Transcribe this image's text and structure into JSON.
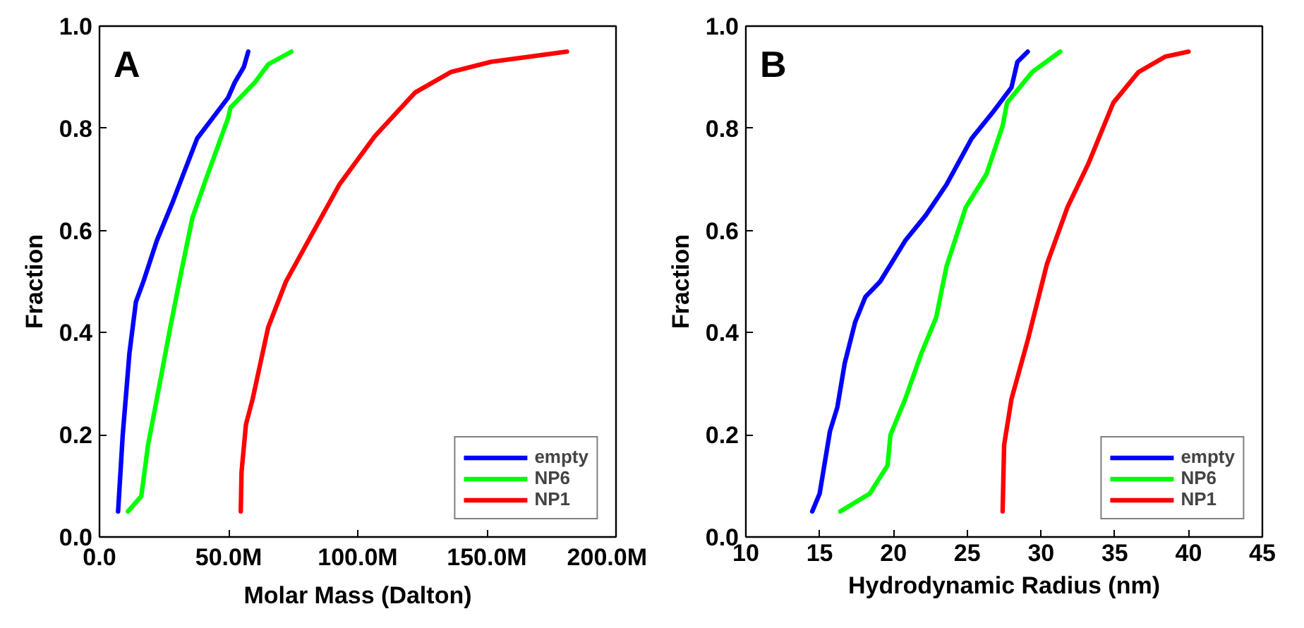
{
  "chart_data": [
    {
      "type": "line",
      "annotations": [
        "A"
      ],
      "xlabel": "Molar Mass (Dalton)",
      "ylabel": "Fraction",
      "xlim": [
        0,
        200
      ],
      "ylim": [
        0,
        1
      ],
      "xticks": [
        {
          "value": 0,
          "label": "0.0"
        },
        {
          "value": 50,
          "label": "50.0M"
        },
        {
          "value": 100,
          "label": "100.0M"
        },
        {
          "value": 150,
          "label": "150.0M"
        },
        {
          "value": 200,
          "label": "200.0M"
        }
      ],
      "yticks": [
        {
          "value": 0,
          "label": "0.0"
        },
        {
          "value": 0.2,
          "label": "0.2"
        },
        {
          "value": 0.4,
          "label": "0.4"
        },
        {
          "value": 0.6,
          "label": "0.6"
        },
        {
          "value": 0.8,
          "label": "0.8"
        },
        {
          "value": 1,
          "label": "1.0"
        }
      ],
      "grid": false,
      "legend": "bottom right",
      "marker": "none",
      "line_style": "solid",
      "series": [
        {
          "name": "empty",
          "color": "#0000ff",
          "x": [
            7.2,
            9,
            11.6,
            14.1,
            17,
            22.2,
            28.3,
            31.7,
            37.8,
            43.8,
            49.8,
            52.4,
            55.9,
            57.6
          ],
          "values": [
            0.05,
            0.2,
            0.36,
            0.46,
            0.5,
            0.58,
            0.655,
            0.7,
            0.78,
            0.82,
            0.86,
            0.89,
            0.92,
            0.95
          ]
        },
        {
          "name": "NP6",
          "color": "#00ff00",
          "x": [
            11,
            16.2,
            18.8,
            22.2,
            27.4,
            31.7,
            36,
            41.2,
            49.8,
            50.7,
            60.2,
            65.3,
            74.3
          ],
          "values": [
            0.05,
            0.08,
            0.18,
            0.27,
            0.41,
            0.52,
            0.625,
            0.7,
            0.82,
            0.84,
            0.89,
            0.925,
            0.95
          ]
        },
        {
          "name": "NP1",
          "color": "#ff0000",
          "x": [
            54.7,
            55,
            56.7,
            59.3,
            65.3,
            72.2,
            80.9,
            92.9,
            106.7,
            122.2,
            136,
            151.6,
            181
          ],
          "values": [
            0.05,
            0.127,
            0.22,
            0.27,
            0.41,
            0.5,
            0.58,
            0.69,
            0.785,
            0.87,
            0.91,
            0.93,
            0.95
          ]
        }
      ]
    },
    {
      "type": "line",
      "annotations": [
        "B"
      ],
      "xlabel": "Hydrodynamic Radius (nm)",
      "ylabel": "Fraction",
      "xlim": [
        10,
        45
      ],
      "ylim": [
        0,
        1
      ],
      "xticks": [
        10,
        15,
        20,
        25,
        30,
        35,
        40,
        45
      ],
      "yticks": [
        {
          "value": 0,
          "label": "0.0"
        },
        {
          "value": 0.2,
          "label": "0.2"
        },
        {
          "value": 0.4,
          "label": "0.4"
        },
        {
          "value": 0.6,
          "label": "0.6"
        },
        {
          "value": 0.8,
          "label": "0.8"
        },
        {
          "value": 1,
          "label": "1.0"
        }
      ],
      "grid": false,
      "legend": "bottom right",
      "marker": "none",
      "line_style": "solid",
      "series": [
        {
          "name": "empty",
          "color": "#0000ff",
          "x": [
            14.5,
            15,
            15.7,
            16.2,
            16.7,
            17.4,
            18.1,
            19.1,
            20.8,
            22.2,
            23.6,
            25.3,
            26.7,
            28,
            28.4,
            29.1
          ],
          "values": [
            0.05,
            0.085,
            0.207,
            0.254,
            0.34,
            0.42,
            0.47,
            0.5,
            0.58,
            0.63,
            0.69,
            0.78,
            0.83,
            0.88,
            0.93,
            0.95
          ]
        },
        {
          "name": "NP6",
          "color": "#00ff00",
          "x": [
            16.4,
            18.4,
            19.6,
            19.8,
            20.8,
            21.9,
            22.9,
            23.6,
            24.9,
            26.3,
            27.4,
            27.7,
            29.4,
            31.3
          ],
          "values": [
            0.05,
            0.085,
            0.14,
            0.2,
            0.27,
            0.36,
            0.43,
            0.53,
            0.645,
            0.71,
            0.805,
            0.85,
            0.91,
            0.95
          ]
        },
        {
          "name": "NP1",
          "color": "#ff0000",
          "x": [
            27.4,
            27.5,
            28,
            29.1,
            30.4,
            31.8,
            33.2,
            34.9,
            36.6,
            38.4,
            40
          ],
          "values": [
            0.05,
            0.18,
            0.27,
            0.385,
            0.534,
            0.646,
            0.73,
            0.85,
            0.91,
            0.94,
            0.95
          ]
        }
      ]
    }
  ]
}
